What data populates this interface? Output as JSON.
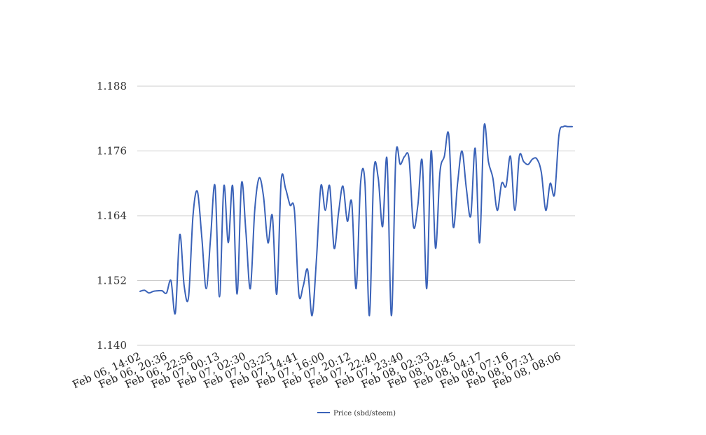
{
  "chart_data": {
    "type": "line",
    "title": "",
    "xlabel": "",
    "ylabel": "",
    "ylim": [
      1.14,
      1.188
    ],
    "yticks": [
      "1.140",
      "1.152",
      "1.164",
      "1.176",
      "1.188"
    ],
    "grid": true,
    "legend_position": "bottom",
    "x_tick_labels": [
      "Feb 06, 14:02",
      "Feb 06, 20:36",
      "Feb 06, 22:56",
      "Feb 07, 00:13",
      "Feb 07, 02:30",
      "Feb 07, 03:25",
      "Feb 07, 14:41",
      "Feb 07, 16:00",
      "Feb 07, 20:12",
      "Feb 07, 22:40",
      "Feb 07, 23:40",
      "Feb 08, 02:33",
      "Feb 08, 02:45",
      "Feb 08, 04:17",
      "Feb 08, 07:16",
      "Feb 08, 07:31",
      "Feb 08, 08:06"
    ],
    "series": [
      {
        "name": "Price (sbd/steem)",
        "color": "#3a62b8",
        "values": [
          1.15,
          1.1502,
          1.1497,
          1.15,
          1.1501,
          1.1501,
          1.1497,
          1.152,
          1.146,
          1.1605,
          1.151,
          1.149,
          1.164,
          1.1685,
          1.16,
          1.1505,
          1.16,
          1.1695,
          1.149,
          1.1695,
          1.159,
          1.1695,
          1.1495,
          1.17,
          1.161,
          1.1505,
          1.165,
          1.171,
          1.1675,
          1.159,
          1.164,
          1.1495,
          1.1705,
          1.169,
          1.166,
          1.165,
          1.1495,
          1.151,
          1.154,
          1.1455,
          1.156,
          1.1695,
          1.165,
          1.1695,
          1.158,
          1.1645,
          1.1695,
          1.163,
          1.1665,
          1.1505,
          1.17,
          1.17,
          1.1455,
          1.172,
          1.171,
          1.162,
          1.1745,
          1.1455,
          1.175,
          1.1735,
          1.175,
          1.1745,
          1.162,
          1.166,
          1.174,
          1.1505,
          1.176,
          1.158,
          1.172,
          1.175,
          1.179,
          1.162,
          1.17,
          1.176,
          1.169,
          1.164,
          1.1765,
          1.159,
          1.1805,
          1.174,
          1.171,
          1.165,
          1.17,
          1.1695,
          1.175,
          1.165,
          1.175,
          1.174,
          1.1735,
          1.1745,
          1.1745,
          1.172,
          1.165,
          1.17,
          1.168,
          1.179,
          1.1805,
          1.1805,
          1.1805
        ]
      }
    ]
  }
}
